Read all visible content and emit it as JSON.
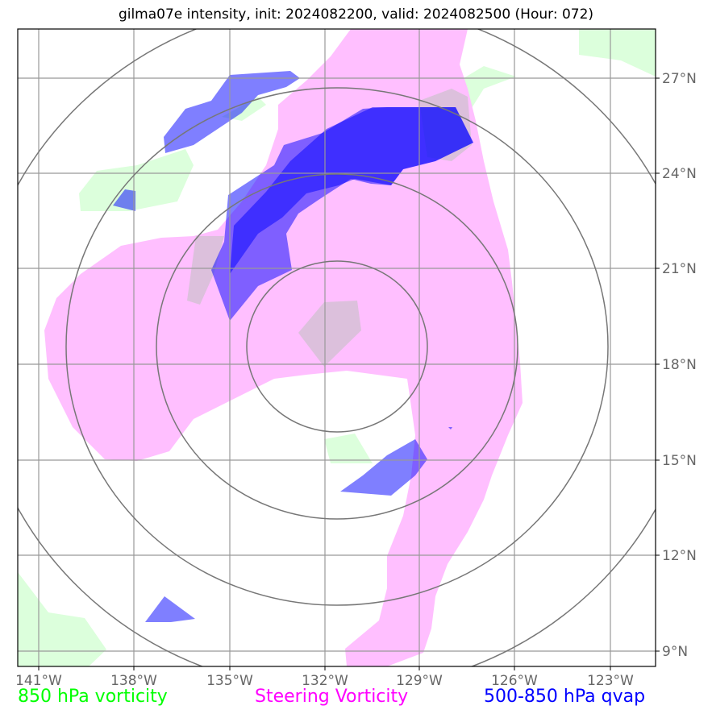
{
  "title": "gilma07e intensity, init: 2024082200, valid: 2024082500 (Hour: 072)",
  "axes": {
    "lon_ticks": [
      "141°W",
      "138°W",
      "135°W",
      "132°W",
      "129°W",
      "126°W",
      "123°W"
    ],
    "lat_ticks": [
      "27°N",
      "24°N",
      "21°N",
      "18°N",
      "15°N",
      "12°N",
      "9°N"
    ]
  },
  "legend": {
    "vorticity_850": {
      "label": "850 hPa vorticity",
      "color": "#00ff00"
    },
    "steering": {
      "label": "Steering Vorticity",
      "color": "#ff00ff"
    },
    "qvap": {
      "label": "500-850 hPa qvap",
      "color": "#0000ff"
    }
  },
  "fill_colors": {
    "vorticity_850": "#dcffdc",
    "steering": "#ffbfff",
    "qvap": "#0000ff"
  },
  "range_rings_center": {
    "lon": -132,
    "lat": 18.9
  }
}
